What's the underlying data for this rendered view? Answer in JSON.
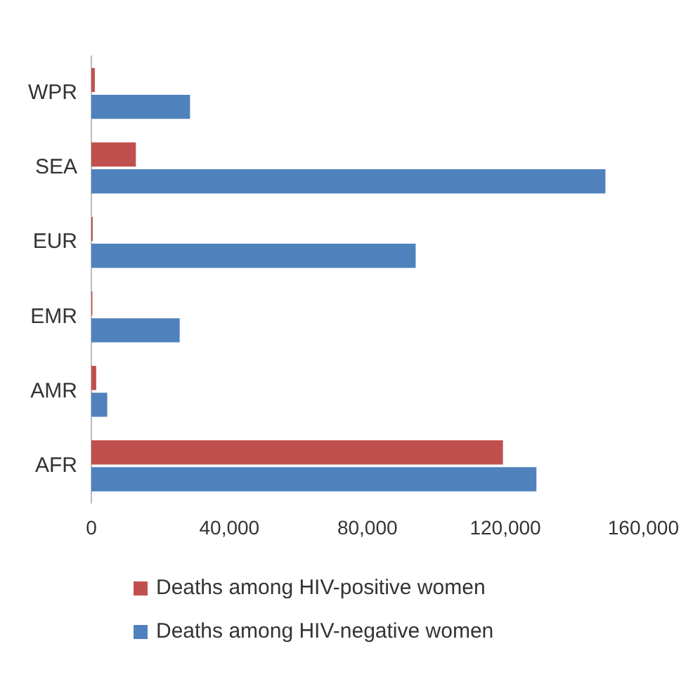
{
  "chart_data": {
    "type": "bar",
    "orientation": "horizontal",
    "categories": [
      "WPR",
      "SEA",
      "EUR",
      "EMR",
      "AMR",
      "AFR"
    ],
    "series": [
      {
        "name": "Deaths among HIV-positive women",
        "color": "#c0504d",
        "values": [
          1000,
          12900,
          400,
          300,
          1400,
          119300
        ]
      },
      {
        "name": "Deaths among HIV-negative women",
        "color": "#4f81bd",
        "values": [
          28600,
          149000,
          94000,
          25600,
          4600,
          129000
        ]
      }
    ],
    "xlim": [
      0,
      160000
    ],
    "xticks": [
      {
        "value": 0,
        "label": "0"
      },
      {
        "value": 40000,
        "label": "40,000"
      },
      {
        "value": 80000,
        "label": "80,000"
      },
      {
        "value": 120000,
        "label": "120,000"
      },
      {
        "value": 160000,
        "label": "160,000"
      }
    ],
    "grid": false,
    "legend": "bottom"
  }
}
